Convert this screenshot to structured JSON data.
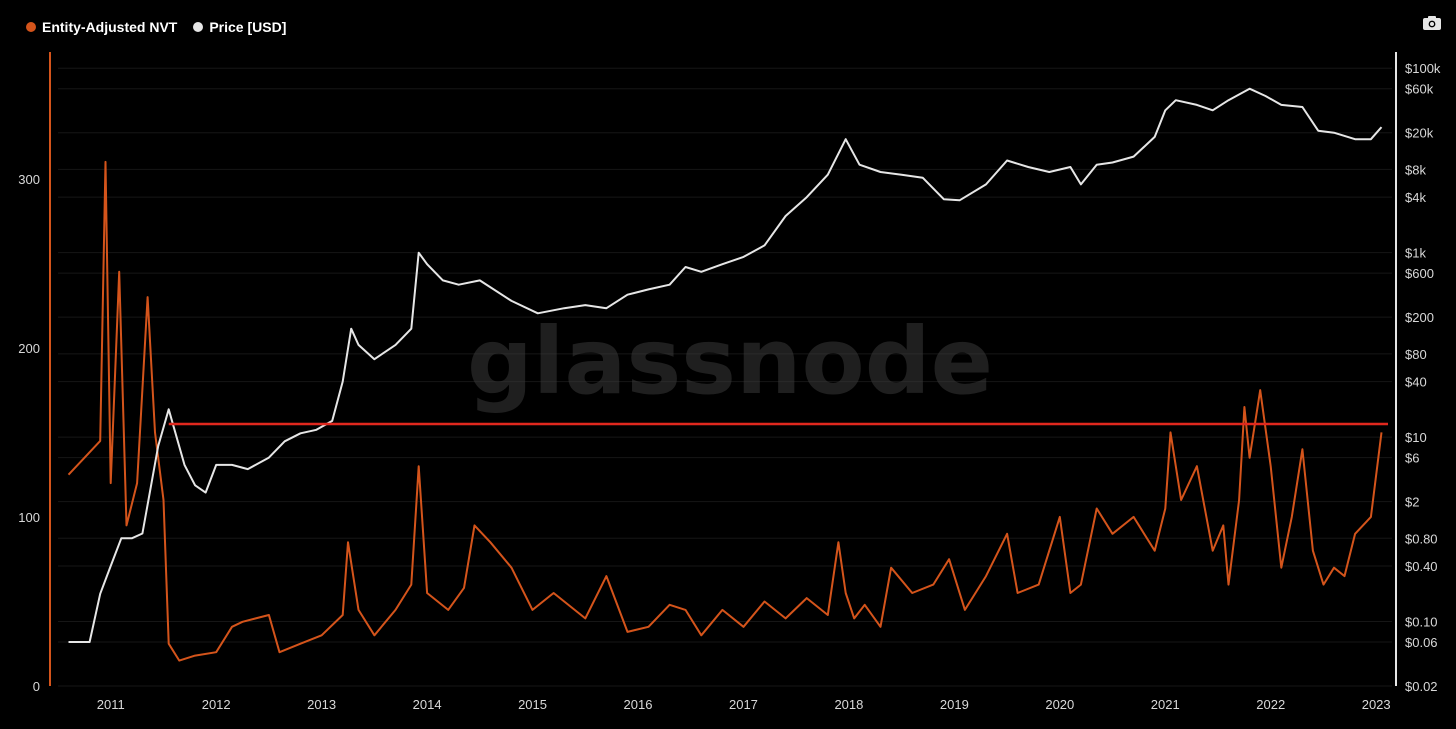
{
  "legend": {
    "nvt_label": "Entity-Adjusted NVT",
    "price_label": "Price [USD]"
  },
  "watermark": "glassnode",
  "toolbar": {
    "camera": "camera-icon"
  },
  "colors": {
    "nvt": "#d4541b",
    "price": "#e6e6e6",
    "threshold": "#e0281e",
    "background": "#000000"
  },
  "chart_data": {
    "type": "line",
    "x_ticks": [
      "2011",
      "2012",
      "2013",
      "2014",
      "2015",
      "2016",
      "2017",
      "2018",
      "2019",
      "2020",
      "2021",
      "2022",
      "2023"
    ],
    "y_left_ticks": [
      "0",
      "100",
      "200",
      "300"
    ],
    "y_left_range": [
      0,
      375
    ],
    "y_right_scale": "log",
    "y_right_ticks": [
      "$0.02",
      "$0.06",
      "$0.10",
      "$0.40",
      "$0.80",
      "$2",
      "$6",
      "$10",
      "$40",
      "$80",
      "$200",
      "$600",
      "$1k",
      "$4k",
      "$8k",
      "$20k",
      "$60k",
      "$100k"
    ],
    "y_right_tick_values": [
      0.02,
      0.06,
      0.1,
      0.4,
      0.8,
      2,
      6,
      10,
      40,
      80,
      200,
      600,
      1000,
      4000,
      8000,
      20000,
      60000,
      100000
    ],
    "y_right_range": [
      0.02,
      150000
    ],
    "threshold": {
      "axis": "left",
      "value": 155
    },
    "series": [
      {
        "name": "Entity-Adjusted NVT",
        "axis": "left",
        "x": [
          2010.6,
          2010.75,
          2010.9,
          2010.95,
          2011.0,
          2011.08,
          2011.15,
          2011.25,
          2011.35,
          2011.42,
          2011.5,
          2011.55,
          2011.65,
          2011.8,
          2012.0,
          2012.15,
          2012.25,
          2012.5,
          2012.6,
          2012.8,
          2013.0,
          2013.2,
          2013.25,
          2013.35,
          2013.5,
          2013.7,
          2013.85,
          2013.92,
          2014.0,
          2014.2,
          2014.35,
          2014.45,
          2014.6,
          2014.8,
          2015.0,
          2015.2,
          2015.5,
          2015.7,
          2015.9,
          2016.1,
          2016.3,
          2016.45,
          2016.6,
          2016.8,
          2017.0,
          2017.2,
          2017.4,
          2017.6,
          2017.8,
          2017.9,
          2017.97,
          2018.05,
          2018.15,
          2018.3,
          2018.4,
          2018.6,
          2018.8,
          2018.95,
          2019.1,
          2019.3,
          2019.5,
          2019.6,
          2019.8,
          2020.0,
          2020.1,
          2020.2,
          2020.35,
          2020.5,
          2020.7,
          2020.9,
          2021.0,
          2021.05,
          2021.15,
          2021.3,
          2021.45,
          2021.55,
          2021.6,
          2021.7,
          2021.75,
          2021.8,
          2021.9,
          2022.0,
          2022.1,
          2022.2,
          2022.3,
          2022.4,
          2022.5,
          2022.6,
          2022.7,
          2022.8,
          2022.95,
          2023.05
        ],
        "y": [
          125,
          135,
          145,
          310,
          120,
          245,
          95,
          120,
          230,
          150,
          110,
          25,
          15,
          18,
          20,
          35,
          38,
          42,
          20,
          25,
          30,
          42,
          85,
          45,
          30,
          45,
          60,
          130,
          55,
          45,
          58,
          95,
          85,
          70,
          45,
          55,
          40,
          65,
          32,
          35,
          48,
          45,
          30,
          45,
          35,
          50,
          40,
          52,
          42,
          85,
          55,
          40,
          48,
          35,
          70,
          55,
          60,
          75,
          45,
          65,
          90,
          55,
          60,
          100,
          55,
          60,
          105,
          90,
          100,
          80,
          105,
          150,
          110,
          130,
          80,
          95,
          60,
          110,
          165,
          135,
          175,
          130,
          70,
          100,
          140,
          80,
          60,
          70,
          65,
          90,
          100,
          150
        ]
      },
      {
        "name": "Price [USD]",
        "axis": "right",
        "x": [
          2010.6,
          2010.8,
          2010.9,
          2011.0,
          2011.1,
          2011.2,
          2011.3,
          2011.45,
          2011.55,
          2011.7,
          2011.8,
          2011.9,
          2012.0,
          2012.15,
          2012.3,
          2012.5,
          2012.65,
          2012.8,
          2012.95,
          2013.1,
          2013.2,
          2013.28,
          2013.35,
          2013.5,
          2013.7,
          2013.85,
          2013.92,
          2014.0,
          2014.15,
          2014.3,
          2014.5,
          2014.8,
          2015.05,
          2015.3,
          2015.5,
          2015.7,
          2015.9,
          2016.1,
          2016.3,
          2016.45,
          2016.6,
          2016.8,
          2017.0,
          2017.2,
          2017.4,
          2017.6,
          2017.8,
          2017.97,
          2018.1,
          2018.3,
          2018.5,
          2018.7,
          2018.9,
          2019.05,
          2019.3,
          2019.5,
          2019.7,
          2019.9,
          2020.1,
          2020.2,
          2020.35,
          2020.5,
          2020.7,
          2020.9,
          2021.0,
          2021.1,
          2021.3,
          2021.45,
          2021.6,
          2021.8,
          2021.95,
          2022.1,
          2022.3,
          2022.45,
          2022.6,
          2022.8,
          2022.95,
          2023.05
        ],
        "y": [
          0.06,
          0.06,
          0.2,
          0.4,
          0.8,
          0.8,
          0.9,
          8,
          20,
          5,
          3,
          2.5,
          5,
          5,
          4.5,
          6,
          9,
          11,
          12,
          15,
          40,
          150,
          100,
          70,
          100,
          150,
          1000,
          750,
          500,
          450,
          500,
          300,
          220,
          250,
          270,
          250,
          350,
          400,
          450,
          700,
          620,
          750,
          900,
          1200,
          2500,
          4000,
          7000,
          17000,
          9000,
          7500,
          7000,
          6500,
          3800,
          3700,
          5500,
          10000,
          8500,
          7500,
          8500,
          5500,
          9000,
          9500,
          11000,
          18000,
          35000,
          45000,
          40000,
          35000,
          45000,
          60000,
          50000,
          40000,
          38000,
          21000,
          20000,
          17000,
          17000,
          23000
        ]
      }
    ]
  }
}
